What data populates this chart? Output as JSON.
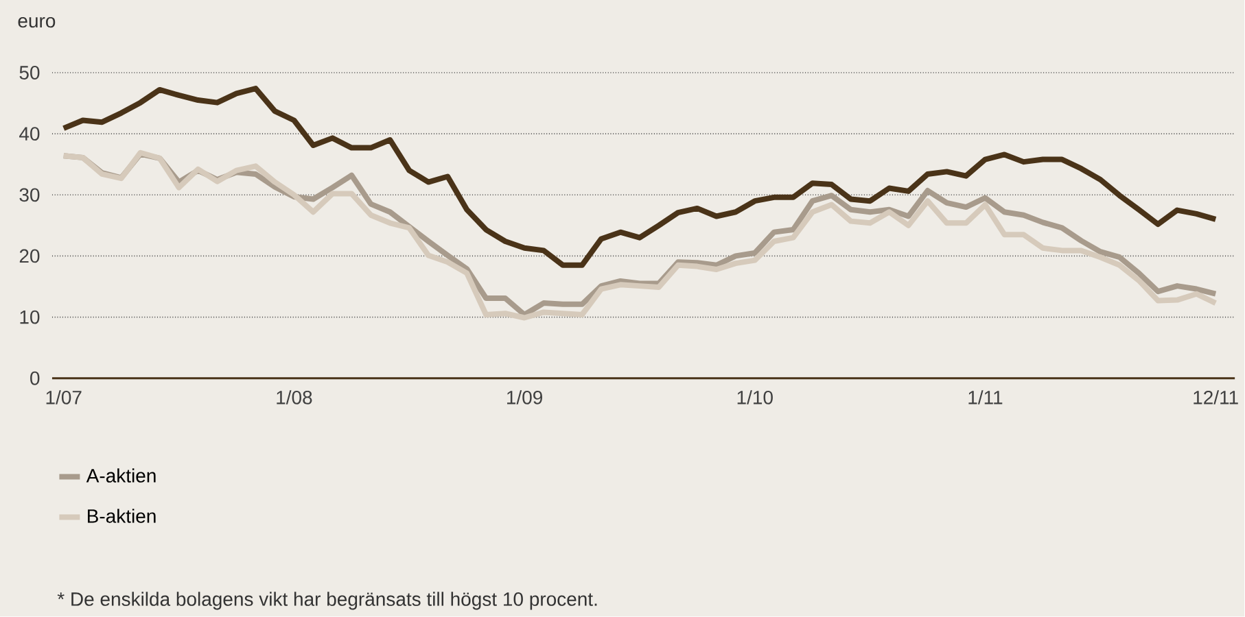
{
  "chart_data": {
    "type": "line",
    "ylabel": "euro",
    "categories": [
      "1/07",
      null,
      null,
      null,
      null,
      null,
      null,
      null,
      null,
      null,
      null,
      null,
      "1/08",
      null,
      null,
      null,
      null,
      null,
      null,
      null,
      null,
      null,
      null,
      null,
      "1/09",
      null,
      null,
      null,
      null,
      null,
      null,
      null,
      null,
      null,
      null,
      null,
      "1/10",
      null,
      null,
      null,
      null,
      null,
      null,
      null,
      null,
      null,
      null,
      null,
      "1/11",
      null,
      null,
      null,
      null,
      null,
      null,
      null,
      null,
      null,
      null,
      null,
      "12/11"
    ],
    "series": [
      {
        "color": "#4a3318",
        "values": [
          40.9,
          42.2,
          41.9,
          43.4,
          45.1,
          47.2,
          46.3,
          45.5,
          45.1,
          46.6,
          47.4,
          43.7,
          42.2,
          38.1,
          39.3,
          37.7,
          37.7,
          39,
          34,
          32.1,
          33,
          27.6,
          24.3,
          22.4,
          21.3,
          20.9,
          18.5,
          18.5,
          22.8,
          23.9,
          23,
          25,
          27.1,
          27.8,
          26.5,
          27.2,
          29,
          29.6,
          29.6,
          31.9,
          31.7,
          29.3,
          29,
          31.1,
          30.6,
          33.4,
          33.8,
          33.1,
          35.8,
          36.6,
          35.4,
          35.8,
          35.8,
          34.3,
          32.5,
          29.9,
          27.6,
          25.2,
          27.5,
          26.9,
          26
        ]
      },
      {
        "name": "A-aktien",
        "color": "#a89b8c",
        "values": [
          36.4,
          36.1,
          33.6,
          32.8,
          36.7,
          36,
          32.1,
          34,
          32.5,
          33.7,
          33.4,
          31.3,
          29.7,
          29.3,
          31.2,
          33.2,
          28.5,
          27.2,
          24.8,
          22.4,
          20.1,
          17.9,
          13.1,
          13.1,
          10.4,
          12.3,
          12.1,
          12.1,
          15.1,
          15.9,
          15.5,
          15.5,
          19,
          18.9,
          18.5,
          20,
          20.5,
          23.9,
          24.3,
          29,
          29.9,
          27.6,
          27.2,
          27.6,
          26.5,
          30.7,
          28.7,
          28,
          29.5,
          27.2,
          26.7,
          25.5,
          24.6,
          22.5,
          20.7,
          19.8,
          17.2,
          14.2,
          15.1,
          14.6,
          13.8
        ]
      },
      {
        "name": "B-aktien",
        "color": "#d6cabb",
        "values": [
          36.4,
          36.1,
          33.4,
          32.7,
          36.9,
          36,
          31.2,
          34.2,
          32.2,
          34,
          34.7,
          32.1,
          30,
          27.2,
          30.2,
          30.2,
          26.7,
          25.4,
          24.6,
          20.1,
          19,
          17.2,
          10.4,
          10.6,
          9.9,
          10.8,
          10.6,
          10.4,
          14.6,
          15.3,
          15.1,
          14.9,
          18.5,
          18.3,
          17.8,
          18.8,
          19.3,
          22.4,
          23,
          27.2,
          28.4,
          25.7,
          25.4,
          27.2,
          25,
          29,
          25.4,
          25.4,
          28.4,
          23.5,
          23.5,
          21.3,
          20.9,
          20.9,
          19.8,
          18.5,
          16,
          12.7,
          12.8,
          13.8,
          12.3
        ]
      }
    ],
    "ylim": [
      0,
      50
    ],
    "yticks": [
      0,
      10,
      20,
      30,
      40,
      50
    ],
    "grid": "y",
    "legend": "bottom",
    "line_style": "solid",
    "annotations": [
      "* De enskilda bolagens vikt har begränsats till högst 10 procent."
    ]
  }
}
